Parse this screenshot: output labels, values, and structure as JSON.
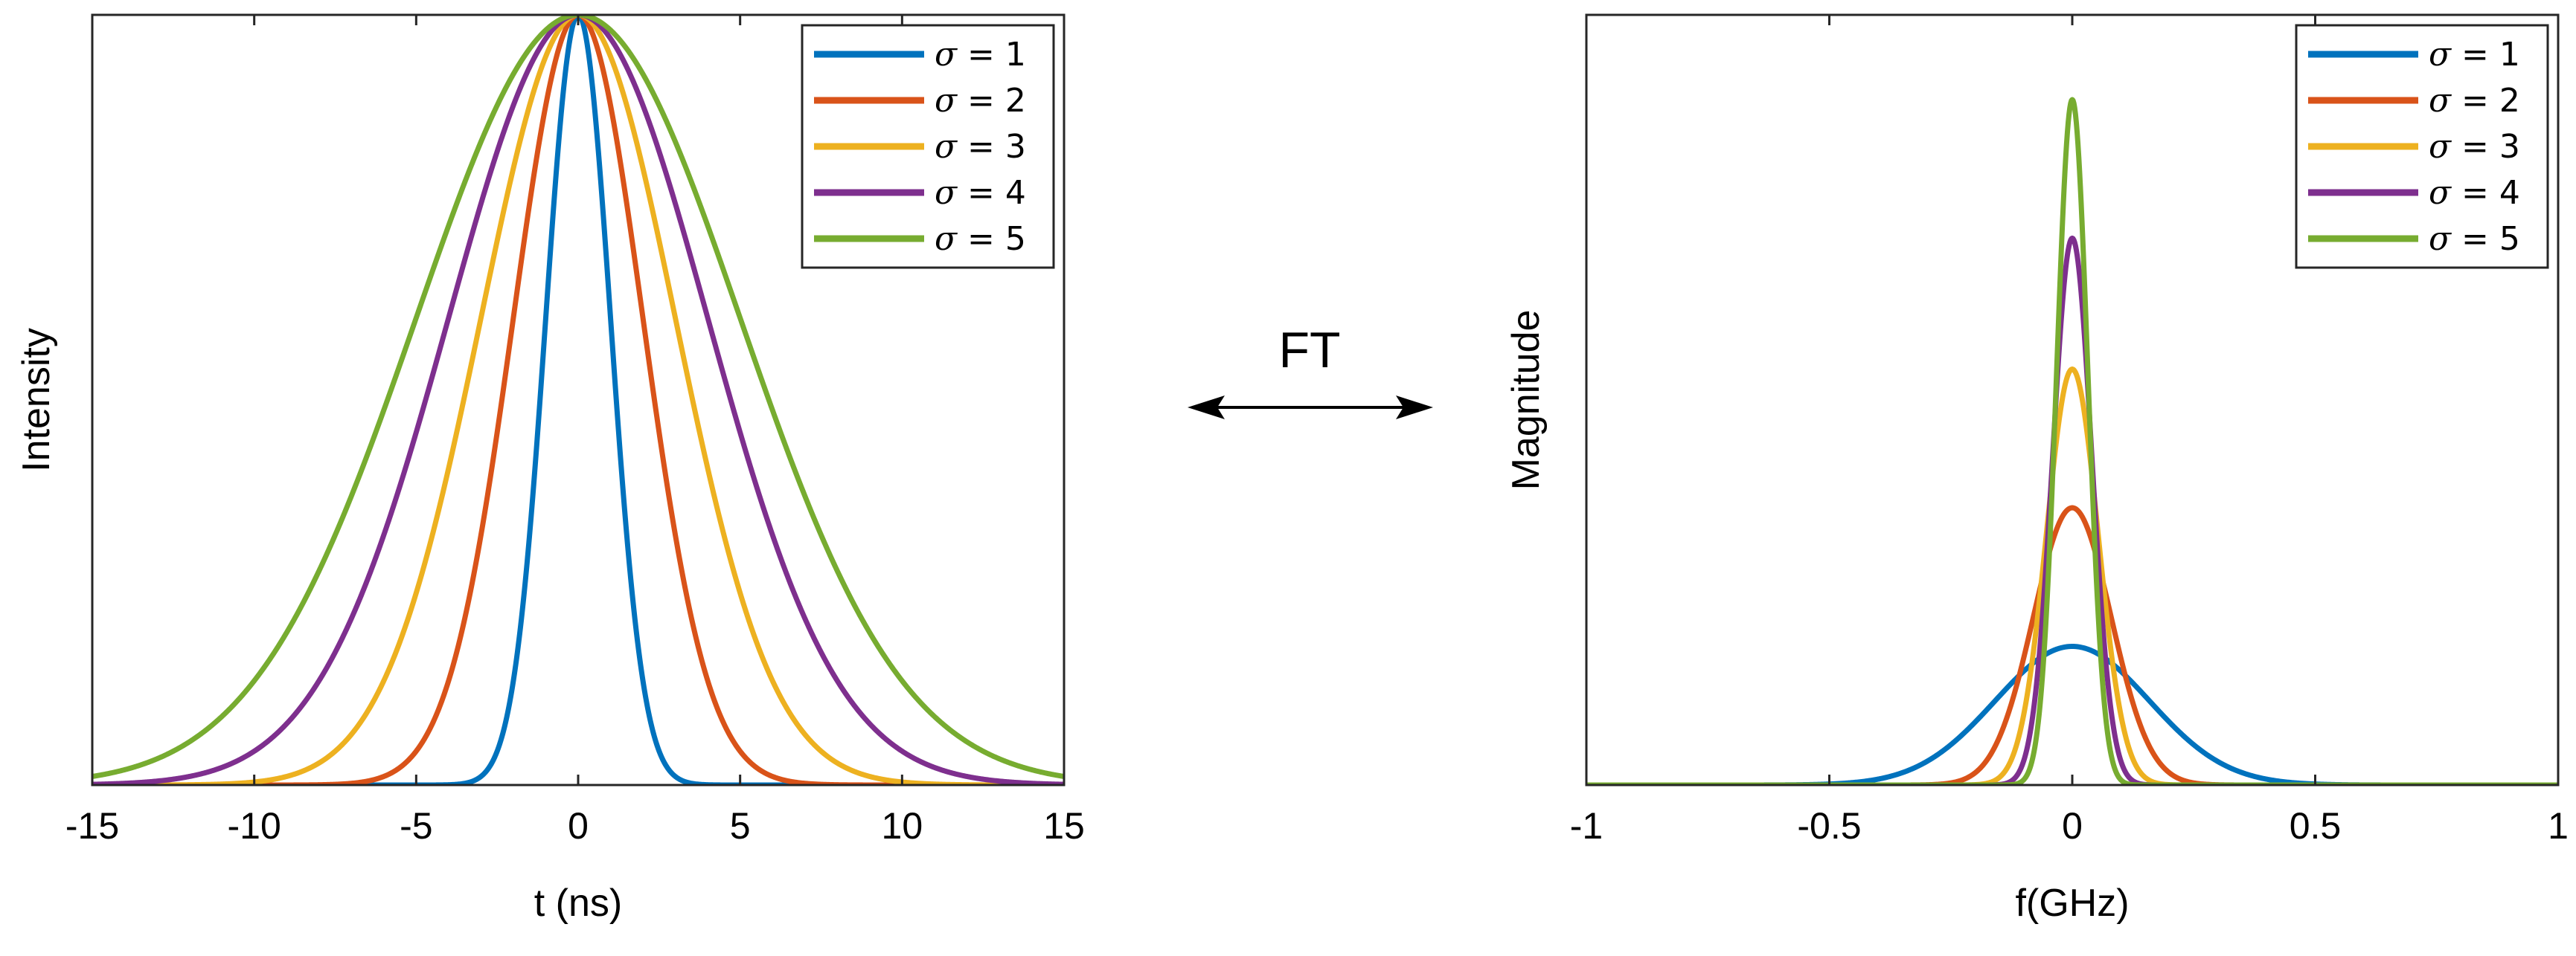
{
  "chart_data": [
    {
      "type": "line",
      "title": "",
      "xlabel": "t (ns)",
      "ylabel": "Intensity",
      "xlim": [
        -15,
        15
      ],
      "ylim": [
        0,
        1
      ],
      "xticks": [
        "-15",
        "-10",
        "-5",
        "0",
        "5",
        "10",
        "15"
      ],
      "xtick_values": [
        -15,
        -10,
        -5,
        0,
        5,
        10,
        15
      ],
      "legend_position": "top-right",
      "x_range_sampled": [
        -15,
        15
      ],
      "series": [
        {
          "name": "σ = 1",
          "sigma": 1,
          "function": "exp(-t^2 / (2 sigma^2))",
          "color": "#0072BD"
        },
        {
          "name": "σ = 2",
          "sigma": 2,
          "function": "exp(-t^2 / (2 sigma^2))",
          "color": "#D95319"
        },
        {
          "name": "σ = 3",
          "sigma": 3,
          "function": "exp(-t^2 / (2 sigma^2))",
          "color": "#EDB120"
        },
        {
          "name": "σ = 4",
          "sigma": 4,
          "function": "exp(-t^2 / (2 sigma^2))",
          "color": "#7E2F8E"
        },
        {
          "name": "σ = 5",
          "sigma": 5,
          "function": "exp(-t^2 / (2 sigma^2))",
          "color": "#77AC30"
        }
      ]
    },
    {
      "type": "line",
      "title": "",
      "xlabel": "f(GHz)",
      "ylabel": "Magnitude",
      "xlim": [
        -1,
        1
      ],
      "ylim": [
        0,
        1
      ],
      "xticks": [
        "-1",
        "-0.5",
        "0",
        "0.5",
        "1"
      ],
      "xtick_values": [
        -1,
        -0.5,
        0,
        0.5,
        1
      ],
      "legend_position": "top-right",
      "series": [
        {
          "name": "σ = 1",
          "sigma": 1,
          "peak": 0.18,
          "width_ghz": 0.159,
          "color": "#0072BD"
        },
        {
          "name": "σ = 2",
          "sigma": 2,
          "peak": 0.36,
          "width_ghz": 0.08,
          "color": "#D95319"
        },
        {
          "name": "σ = 3",
          "sigma": 3,
          "peak": 0.54,
          "width_ghz": 0.053,
          "color": "#EDB120"
        },
        {
          "name": "σ = 4",
          "sigma": 4,
          "peak": 0.71,
          "width_ghz": 0.04,
          "color": "#7E2F8E"
        },
        {
          "name": "σ = 5",
          "sigma": 5,
          "peak": 0.89,
          "width_ghz": 0.032,
          "color": "#77AC30"
        }
      ]
    }
  ],
  "center": {
    "label": "FT",
    "arrow": "↔"
  }
}
